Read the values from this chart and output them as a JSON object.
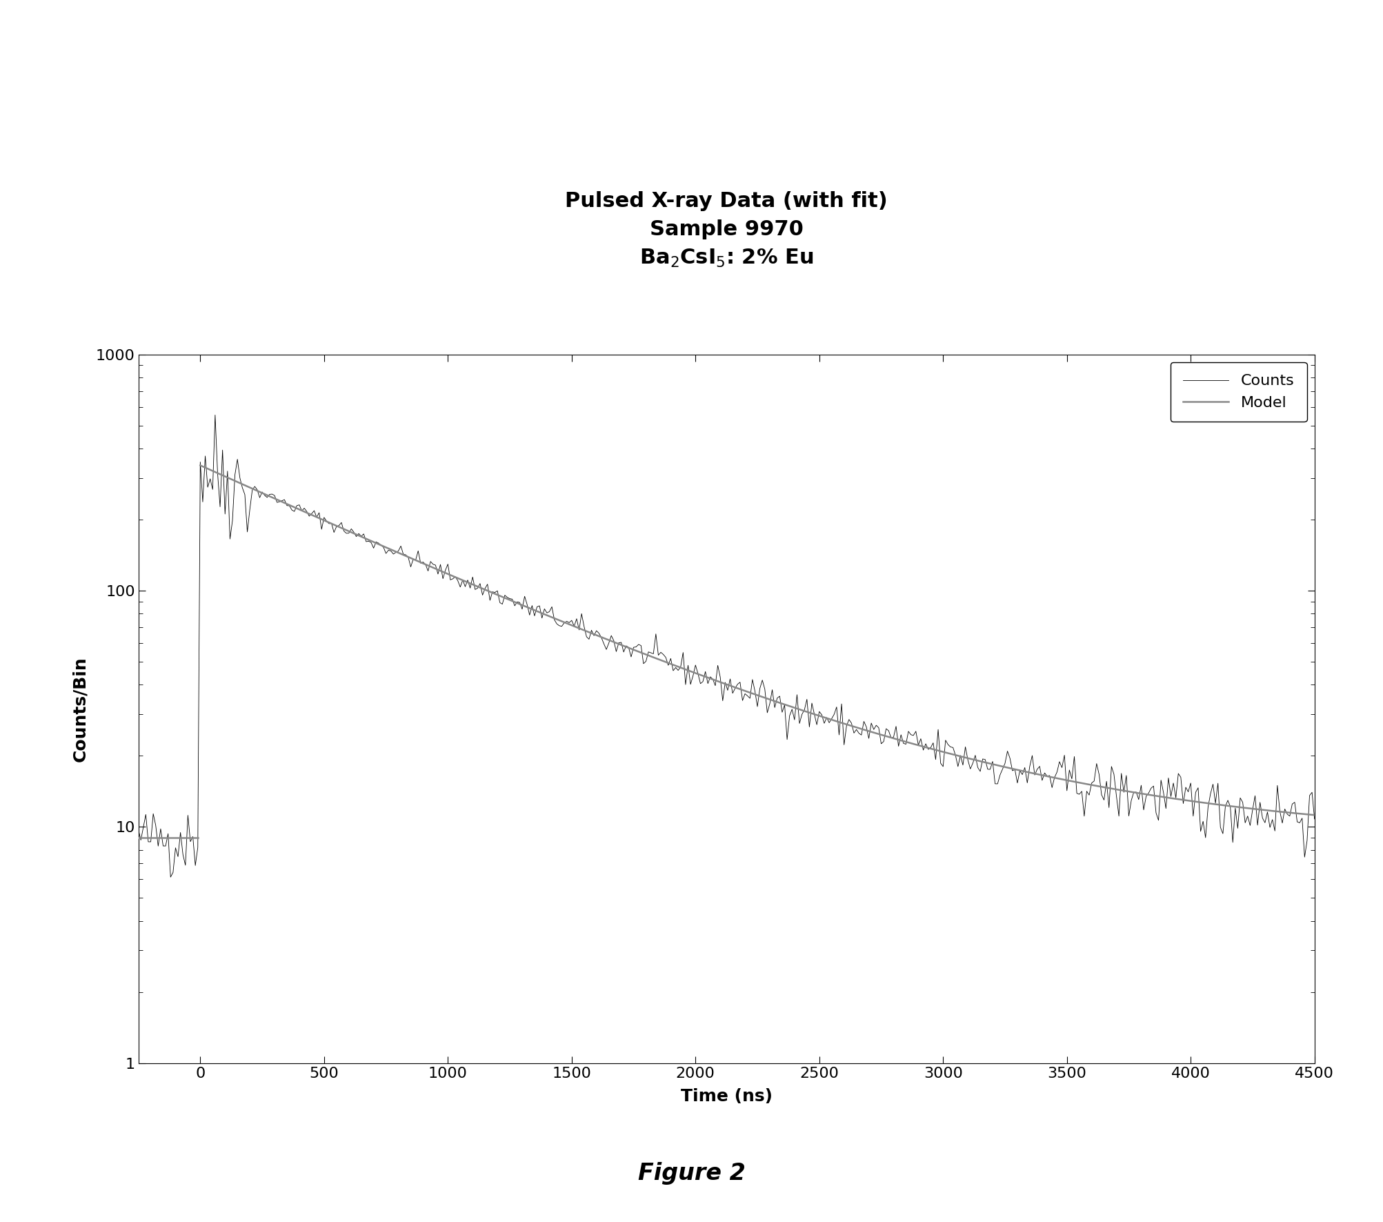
{
  "title_line1": "Pulsed X-ray Data (with fit)",
  "title_line2": "Sample 9970",
  "title_line3": "Ba$_2$CsI$_5$: 2% Eu",
  "xlabel": "Time (ns)",
  "ylabel": "Counts/Bin",
  "figure_caption": "Figure 2",
  "xlim": [
    -250,
    4500
  ],
  "ylim": [
    1,
    1000
  ],
  "xticks": [
    0,
    500,
    1000,
    1500,
    2000,
    2500,
    3000,
    3500,
    4000,
    4500
  ],
  "background_color": "#ffffff",
  "counts_color": "#000000",
  "model_color": "#888888",
  "noise_baseline": 9.0,
  "peak_value": 330.0,
  "decay_tau": 900,
  "title_fontsize": 22,
  "label_fontsize": 18,
  "tick_fontsize": 16,
  "legend_fontsize": 16,
  "caption_fontsize": 24
}
